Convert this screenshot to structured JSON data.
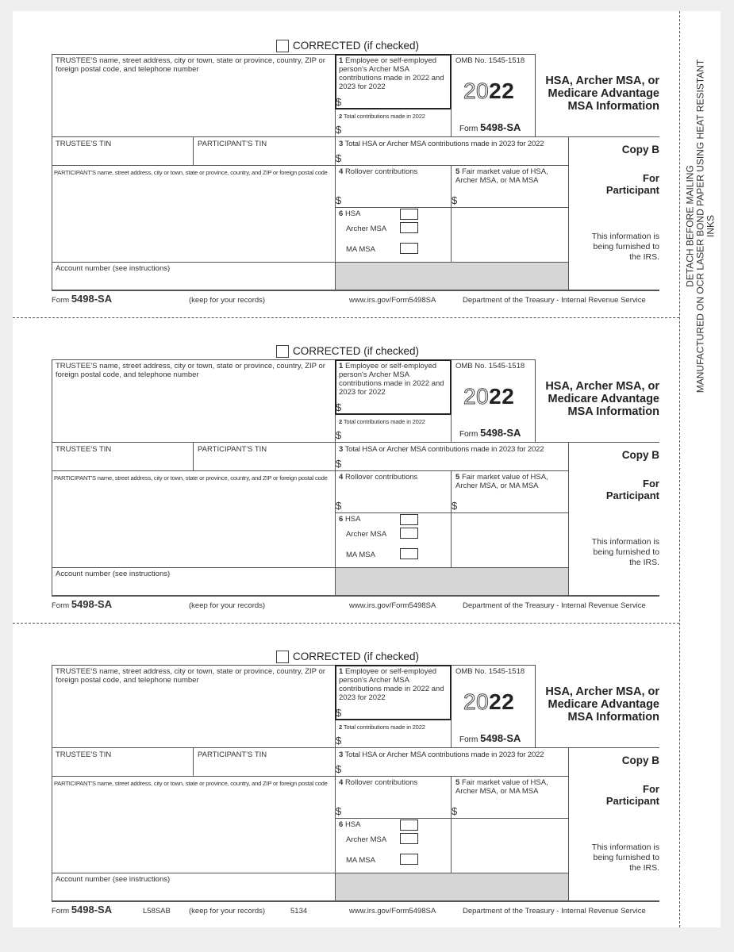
{
  "side_text": {
    "line1": "DETACH BEFORE MAILING",
    "line2": "MANUFACTURED ON OCR LASER BOND PAPER USING HEAT RESISTANT INKS"
  },
  "form": {
    "corrected": "CORRECTED (if checked)",
    "trustee_name": "TRUSTEE'S name, street address, city or town, state or province, country, ZIP or foreign postal code, and telephone number",
    "box1": "Employee or self-employed person's Archer MSA contributions made in 2022 and 2023 for 2022",
    "box1_num": "1",
    "box2_num": "2",
    "box2": "Total contributions made in 2022",
    "omb": "OMB No. 1545-1518",
    "year_outline": "20",
    "year_bold": "22",
    "form_word": "Form",
    "form_number": "5498-SA",
    "title": "HSA, Archer MSA, or Medicare Advantage MSA Information",
    "trustee_tin": "TRUSTEE'S TIN",
    "participant_tin": "PARTICIPANT'S TIN",
    "box3_num": "3",
    "box3": "Total HSA or Archer MSA contributions made in 2023 for 2022",
    "copy": "Copy B",
    "for": "For",
    "participant": "Participant",
    "participant_name": "PARTICIPANT'S name, street address, city or town, state or province, country, and ZIP or foreign postal code",
    "box4_num": "4",
    "box4": "Rollover contributions",
    "box5_num": "5",
    "box5": "Fair market value of HSA, Archer MSA, or MA MSA",
    "box6_num": "6",
    "hsa": "HSA",
    "archer_msa": "Archer MSA",
    "ma_msa": "MA MSA",
    "info": "This information is being furnished to the IRS.",
    "account": "Account number (see instructions)",
    "dollar": "$",
    "keep": "(keep for your records)",
    "url": "www.irs.gov/Form5498SA",
    "dept": "Department of the Treasury - Internal Revenue Service"
  },
  "copies": [
    {
      "code": "",
      "number": ""
    },
    {
      "code": "",
      "number": ""
    },
    {
      "code": "L58SAB",
      "number": "5134"
    }
  ]
}
